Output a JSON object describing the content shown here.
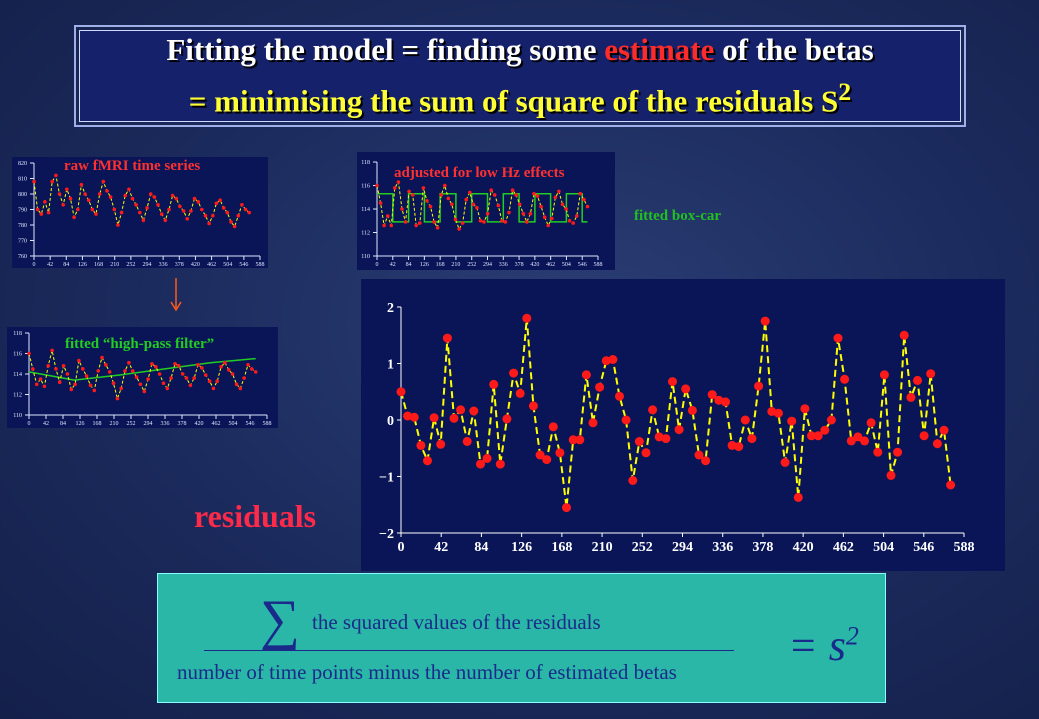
{
  "title": {
    "line1_part1": "Fitting the model = finding some ",
    "line1_highlight": "estimate",
    "line1_part2": " of the betas",
    "line2_main": "= minimising the sum of square of the residuals S",
    "line2_sup": "2"
  },
  "labels": {
    "raw": "raw fMRI time series",
    "adjusted": "adjusted for low Hz effects",
    "highpass": "fitted “high-pass filter”",
    "boxcar": "fitted box-car",
    "residuals": "residuals"
  },
  "formula": {
    "sigma": "∑",
    "numerator": "the squared values of the residuals",
    "denominator": "number of time points minus the number of estimated betas",
    "equals": "= s",
    "equals_sup": "2"
  },
  "colors": {
    "panel_bg": "#0a1557",
    "title_bg": "#15226b",
    "dots": "#ff1a1a",
    "yellow_line": "#ffff00",
    "green_fit": "#22cc22",
    "formula_bg": "#2ab7a8",
    "arrow": "#ff5a1a"
  },
  "chart_data": [
    {
      "name": "raw",
      "type": "line",
      "x_ticks": [
        0,
        42,
        84,
        126,
        168,
        210,
        252,
        294,
        336,
        378,
        420,
        462,
        504,
        546,
        588
      ],
      "y_ticks": [
        760,
        770,
        780,
        790,
        800,
        810,
        820
      ],
      "ylim": [
        760,
        820
      ],
      "xlim": [
        0,
        588
      ],
      "values": [
        808,
        790,
        787,
        795,
        788,
        808,
        812,
        800,
        793,
        803,
        797,
        785,
        790,
        806,
        800,
        796,
        790,
        787,
        800,
        808,
        802,
        798,
        790,
        780,
        788,
        799,
        803,
        797,
        793,
        788,
        783,
        791,
        800,
        798,
        793,
        787,
        783,
        790,
        799,
        797,
        792,
        789,
        784,
        789,
        797,
        795,
        790,
        786,
        781,
        786,
        794,
        796,
        791,
        788,
        782,
        779,
        786,
        793,
        790,
        788
      ]
    },
    {
      "name": "highpass",
      "type": "line",
      "x_ticks": [
        0,
        42,
        84,
        126,
        168,
        210,
        252,
        294,
        336,
        378,
        420,
        462,
        504,
        546,
        588
      ],
      "y_ticks": [
        110,
        112,
        114,
        116,
        118
      ],
      "ylim": [
        110,
        118
      ],
      "xlim": [
        0,
        588
      ],
      "values": [
        116,
        114.5,
        113,
        113.5,
        112.8,
        114.8,
        116.3,
        114.5,
        113.2,
        114.8,
        114.0,
        112.5,
        113.0,
        115.3,
        114.5,
        113.8,
        112.9,
        112.4,
        114.3,
        115.6,
        114.9,
        114.2,
        113.1,
        111.6,
        112.6,
        114.3,
        115.1,
        114.3,
        113.7,
        113.0,
        112.3,
        113.5,
        115.0,
        114.7,
        114.0,
        113.1,
        112.6,
        113.6,
        115.0,
        114.8,
        114.0,
        113.6,
        112.9,
        113.6,
        114.9,
        114.6,
        113.9,
        113.3,
        112.6,
        113.3,
        114.7,
        115.1,
        114.4,
        114.0,
        113.0,
        112.6,
        113.6,
        114.9,
        114.5,
        114.2
      ],
      "trend": [
        114.2,
        113.4,
        113.9,
        114.5,
        115.1,
        115.5
      ]
    },
    {
      "name": "adjusted",
      "type": "line",
      "x_ticks": [
        0,
        42,
        84,
        126,
        168,
        210,
        252,
        294,
        336,
        378,
        420,
        462,
        504,
        546,
        588
      ],
      "y_ticks": [
        110,
        112,
        114,
        116,
        118
      ],
      "ylim": [
        110,
        118
      ],
      "xlim": [
        0,
        588
      ],
      "values": [
        116,
        114.5,
        112.6,
        113.4,
        112.6,
        115.8,
        116.3,
        114.0,
        112.9,
        115.5,
        115.2,
        112.6,
        112.8,
        115.8,
        114.7,
        114.2,
        112.9,
        112.4,
        115.2,
        116.0,
        114.9,
        114.4,
        113.1,
        112.3,
        112.8,
        114.8,
        115.4,
        114.4,
        114.1,
        113.0,
        112.9,
        113.6,
        115.6,
        115.2,
        114.3,
        113.0,
        112.9,
        113.7,
        115.6,
        115.2,
        114.4,
        113.6,
        112.9,
        113.6,
        115.3,
        115.1,
        114.2,
        113.3,
        112.6,
        113.2,
        115.0,
        115.5,
        114.4,
        114.0,
        113.0,
        112.8,
        113.4,
        115.3,
        114.8,
        114.2
      ],
      "boxcar_period": 42,
      "boxcar_levels": [
        112.9,
        115.3
      ]
    },
    {
      "name": "residuals",
      "type": "line",
      "x_ticks": [
        0,
        42,
        84,
        126,
        168,
        210,
        252,
        294,
        336,
        378,
        420,
        462,
        504,
        546,
        588
      ],
      "y_ticks": [
        -2,
        -1,
        0,
        1,
        2
      ],
      "ylim": [
        -2,
        2
      ],
      "xlim": [
        0,
        588
      ],
      "values": [
        0.5,
        0.07,
        0.05,
        -0.45,
        -0.72,
        0.04,
        -0.43,
        1.45,
        0.03,
        0.18,
        -0.38,
        0.16,
        -0.78,
        -0.68,
        0.63,
        -0.78,
        0.02,
        0.83,
        0.47,
        1.8,
        0.25,
        -0.62,
        -0.7,
        -0.12,
        -0.58,
        -1.55,
        -0.35,
        -0.35,
        0.8,
        -0.05,
        0.58,
        1.05,
        1.07,
        0.42,
        0.0,
        -1.07,
        -0.38,
        -0.58,
        0.18,
        -0.3,
        -0.33,
        0.68,
        -0.17,
        0.55,
        0.17,
        -0.62,
        -0.72,
        0.45,
        0.35,
        0.32,
        -0.45,
        -0.47,
        0.0,
        -0.33,
        0.6,
        1.75,
        0.15,
        0.12,
        -0.75,
        -0.02,
        -1.37,
        0.2,
        -0.28,
        -0.28,
        -0.18,
        0.0,
        1.45,
        0.72,
        -0.37,
        -0.3,
        -0.37,
        -0.05,
        -0.57,
        0.8,
        -0.98,
        -0.57,
        1.5,
        0.4,
        0.7,
        -0.28,
        0.82,
        -0.42,
        -0.18,
        -1.15
      ]
    }
  ]
}
